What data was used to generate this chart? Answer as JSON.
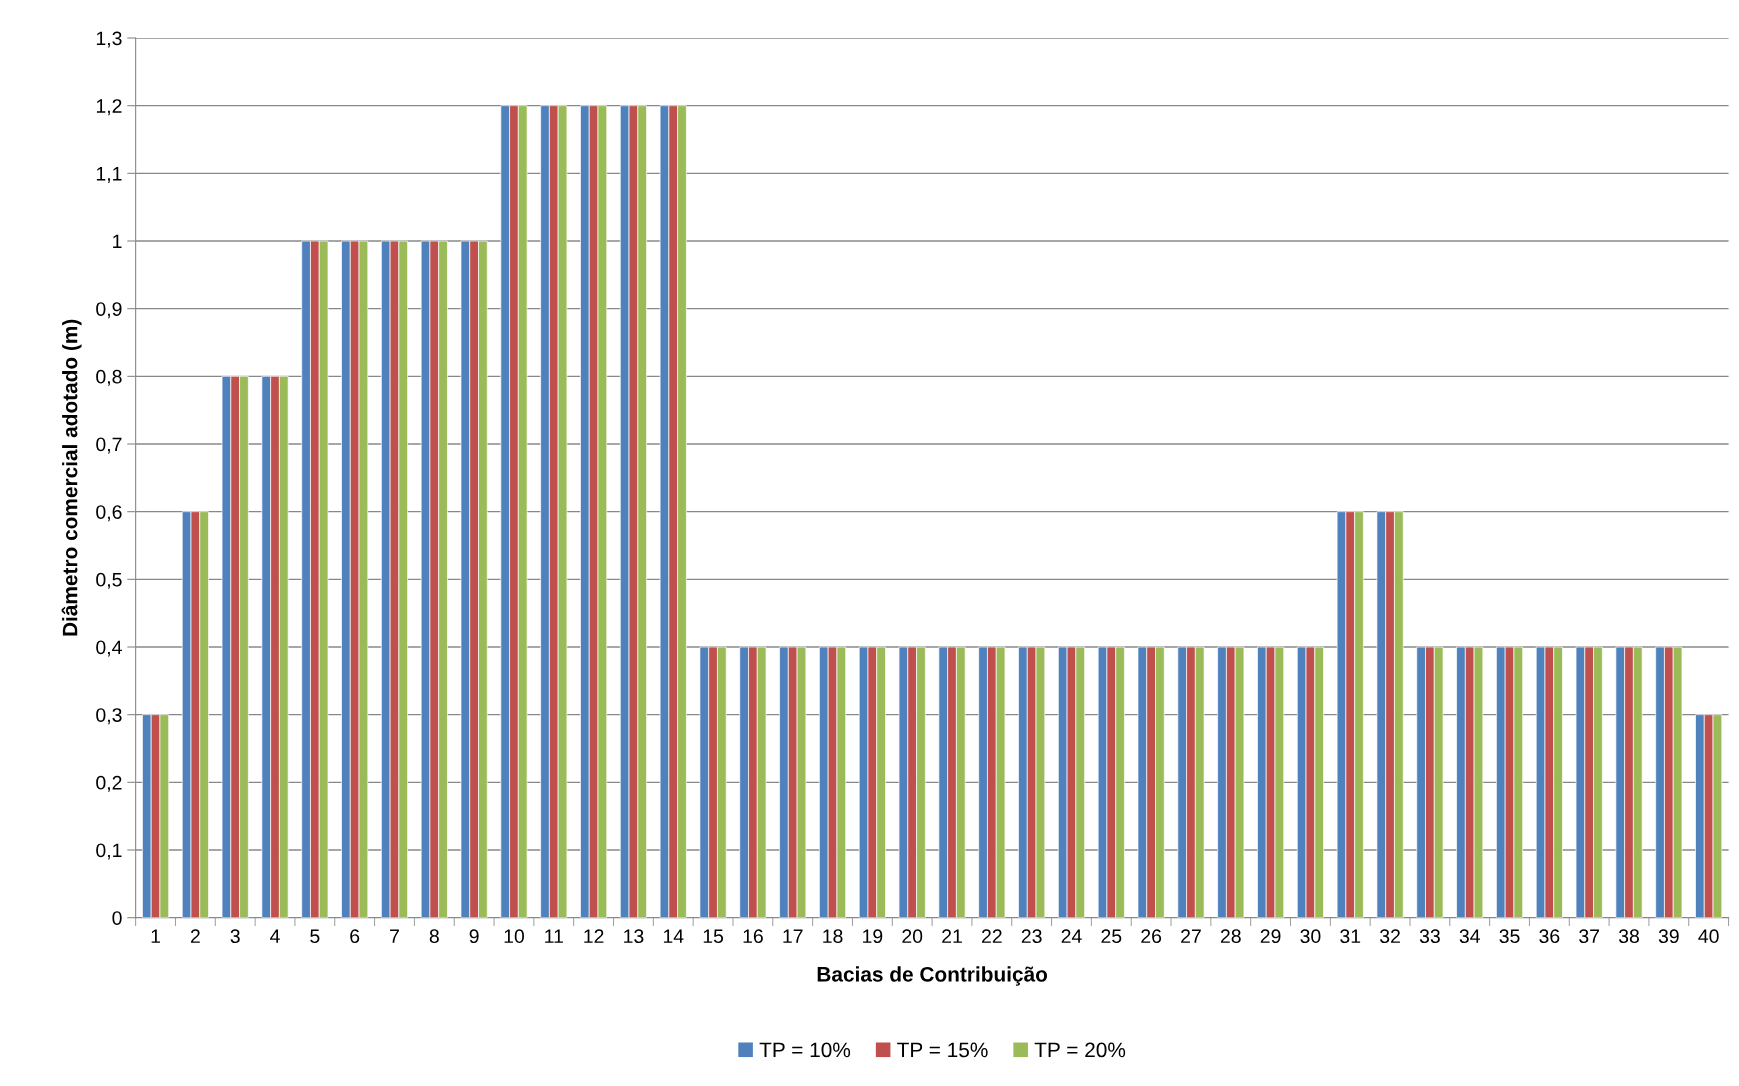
{
  "chart_data": {
    "type": "bar",
    "xlabel": "Bacias de Contribuição",
    "ylabel": "Diâmetro comercial adotado (m)",
    "categories": [
      "1",
      "2",
      "3",
      "4",
      "5",
      "6",
      "7",
      "8",
      "9",
      "10",
      "11",
      "12",
      "13",
      "14",
      "15",
      "16",
      "17",
      "18",
      "19",
      "20",
      "21",
      "22",
      "23",
      "24",
      "25",
      "26",
      "27",
      "28",
      "29",
      "30",
      "31",
      "32",
      "33",
      "34",
      "35",
      "36",
      "37",
      "38",
      "39",
      "40"
    ],
    "series": [
      {
        "name": "TP = 10%",
        "color": "#4f81bd",
        "values": [
          0.3,
          0.6,
          0.8,
          0.8,
          1,
          1,
          1,
          1,
          1,
          1.2,
          1.2,
          1.2,
          1.2,
          1.2,
          0.4,
          0.4,
          0.4,
          0.4,
          0.4,
          0.4,
          0.4,
          0.4,
          0.4,
          0.4,
          0.4,
          0.4,
          0.4,
          0.4,
          0.4,
          0.4,
          0.6,
          0.6,
          0.4,
          0.4,
          0.4,
          0.4,
          0.4,
          0.4,
          0.4,
          0.3
        ]
      },
      {
        "name": "TP = 15%",
        "color": "#c0504d",
        "values": [
          0.3,
          0.6,
          0.8,
          0.8,
          1,
          1,
          1,
          1,
          1,
          1.2,
          1.2,
          1.2,
          1.2,
          1.2,
          0.4,
          0.4,
          0.4,
          0.4,
          0.4,
          0.4,
          0.4,
          0.4,
          0.4,
          0.4,
          0.4,
          0.4,
          0.4,
          0.4,
          0.4,
          0.4,
          0.6,
          0.6,
          0.4,
          0.4,
          0.4,
          0.4,
          0.4,
          0.4,
          0.4,
          0.3
        ]
      },
      {
        "name": "TP = 20%",
        "color": "#9bbb59",
        "values": [
          0.3,
          0.6,
          0.8,
          0.8,
          1,
          1,
          1,
          1,
          1,
          1.2,
          1.2,
          1.2,
          1.2,
          1.2,
          0.4,
          0.4,
          0.4,
          0.4,
          0.4,
          0.4,
          0.4,
          0.4,
          0.4,
          0.4,
          0.4,
          0.4,
          0.4,
          0.4,
          0.4,
          0.4,
          0.6,
          0.6,
          0.4,
          0.4,
          0.4,
          0.4,
          0.4,
          0.4,
          0.4,
          0.3
        ]
      }
    ],
    "ylim": [
      0,
      1.3
    ],
    "yticks": [
      0,
      {
        "value": 0.1,
        "label": "0,1"
      },
      {
        "value": 0.2,
        "label": "0,2"
      },
      {
        "value": 0.3,
        "label": "0,3"
      },
      {
        "value": 0.4,
        "label": "0,4"
      },
      {
        "value": 0.5,
        "label": "0,5"
      },
      {
        "value": 0.6,
        "label": "0,6"
      },
      {
        "value": 0.7,
        "label": "0,7"
      },
      {
        "value": 0.8,
        "label": "0,8"
      },
      {
        "value": 0.9,
        "label": "0,9"
      },
      1,
      {
        "value": 1.1,
        "label": "1,1"
      },
      {
        "value": 1.2,
        "label": "1,2"
      },
      {
        "value": 1.3,
        "label": "1,3"
      }
    ],
    "grid": "y",
    "legend": "bottom"
  }
}
